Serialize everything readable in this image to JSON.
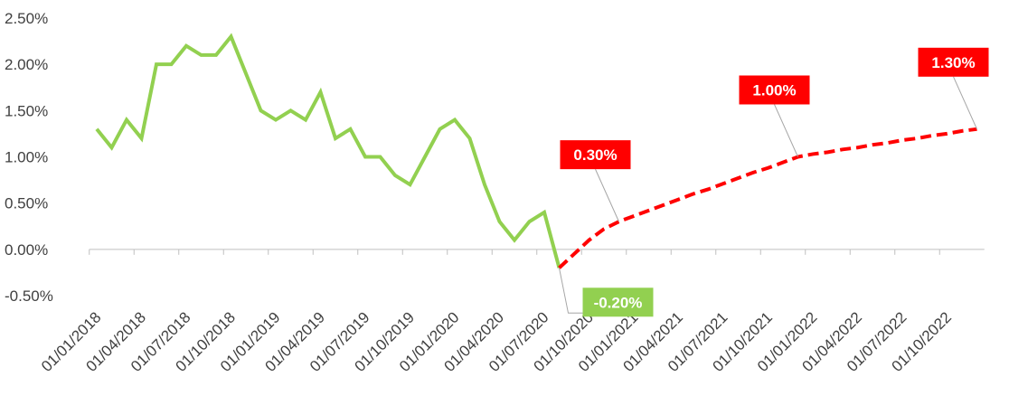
{
  "chart_data": {
    "type": "line",
    "x": [
      "01/01/2018",
      "01/02/2018",
      "01/03/2018",
      "01/04/2018",
      "01/05/2018",
      "01/06/2018",
      "01/07/2018",
      "01/08/2018",
      "01/09/2018",
      "01/10/2018",
      "01/11/2018",
      "01/12/2018",
      "01/01/2019",
      "01/02/2019",
      "01/03/2019",
      "01/04/2019",
      "01/05/2019",
      "01/06/2019",
      "01/07/2019",
      "01/08/2019",
      "01/09/2019",
      "01/10/2019",
      "01/11/2019",
      "01/12/2019",
      "01/01/2020",
      "01/02/2020",
      "01/03/2020",
      "01/04/2020",
      "01/05/2020",
      "01/06/2020",
      "01/07/2020",
      "01/08/2020",
      "01/09/2020",
      "01/10/2020",
      "01/11/2020",
      "01/12/2020",
      "01/01/2021",
      "01/02/2021",
      "01/03/2021",
      "01/04/2021",
      "01/05/2021",
      "01/06/2021",
      "01/07/2021",
      "01/08/2021",
      "01/09/2021",
      "01/10/2021",
      "01/11/2021",
      "01/12/2021",
      "01/01/2022",
      "01/02/2022",
      "01/03/2022",
      "01/04/2022",
      "01/05/2022",
      "01/06/2022",
      "01/07/2022",
      "01/08/2022",
      "01/09/2022",
      "01/10/2022",
      "01/11/2022",
      "01/12/2022"
    ],
    "series": [
      {
        "color": "#92d050",
        "dashed": false,
        "values": [
          1.3,
          1.1,
          1.4,
          1.2,
          2.0,
          2.0,
          2.2,
          2.1,
          2.1,
          2.3,
          1.9,
          1.5,
          1.4,
          1.5,
          1.4,
          1.7,
          1.2,
          1.3,
          1.0,
          1.0,
          0.8,
          0.7,
          1.0,
          1.3,
          1.4,
          1.2,
          0.7,
          0.3,
          0.1,
          0.3,
          0.4,
          -0.2,
          null,
          null,
          null,
          null,
          null,
          null,
          null,
          null,
          null,
          null,
          null,
          null,
          null,
          null,
          null,
          null,
          null,
          null,
          null,
          null,
          null,
          null,
          null,
          null,
          null,
          null,
          null,
          null
        ],
        "value_labels": [
          null,
          null,
          null,
          null,
          null,
          null,
          null,
          null,
          null,
          null,
          null,
          null,
          null,
          null,
          null,
          null,
          null,
          null,
          null,
          null,
          null,
          null,
          null,
          null,
          null,
          null,
          null,
          null,
          null,
          null,
          null,
          "-0.20%",
          null,
          null,
          null,
          null,
          null,
          null,
          null,
          null,
          null,
          null,
          null,
          null,
          null,
          null,
          null,
          null,
          null,
          null,
          null,
          null,
          null,
          null,
          null,
          null,
          null,
          null,
          null,
          null
        ]
      },
      {
        "color": "#ff0000",
        "dashed": true,
        "values": [
          null,
          null,
          null,
          null,
          null,
          null,
          null,
          null,
          null,
          null,
          null,
          null,
          null,
          null,
          null,
          null,
          null,
          null,
          null,
          null,
          null,
          null,
          null,
          null,
          null,
          null,
          null,
          null,
          null,
          null,
          null,
          -0.2,
          -0.05,
          0.1,
          0.22,
          0.3,
          0.36,
          0.42,
          0.48,
          0.54,
          0.6,
          0.65,
          0.71,
          0.77,
          0.83,
          0.88,
          0.94,
          1.0,
          1.03,
          1.05,
          1.08,
          1.1,
          1.13,
          1.15,
          1.18,
          1.2,
          1.23,
          1.25,
          1.28,
          1.3
        ],
        "value_labels": [
          null,
          null,
          null,
          null,
          null,
          null,
          null,
          null,
          null,
          null,
          null,
          null,
          null,
          null,
          null,
          null,
          null,
          null,
          null,
          null,
          null,
          null,
          null,
          null,
          null,
          null,
          null,
          null,
          null,
          null,
          null,
          null,
          null,
          null,
          null,
          "0.30%",
          null,
          null,
          null,
          null,
          null,
          null,
          null,
          null,
          null,
          null,
          null,
          "1.00%",
          null,
          null,
          null,
          null,
          null,
          null,
          null,
          null,
          null,
          null,
          null,
          "1.30%"
        ]
      }
    ],
    "ylim": [
      -0.5,
      2.5
    ],
    "yticks": [
      {
        "value": -0.5,
        "label": "-0.50%"
      },
      {
        "value": 0,
        "label": "0.00%"
      },
      {
        "value": 0.5,
        "label": "0.50%"
      },
      {
        "value": 1,
        "label": "1.00%"
      },
      {
        "value": 1.5,
        "label": "1.50%"
      },
      {
        "value": 2,
        "label": "2.00%"
      },
      {
        "value": 2.5,
        "label": "2.50%"
      }
    ],
    "xtick_every": 3
  }
}
